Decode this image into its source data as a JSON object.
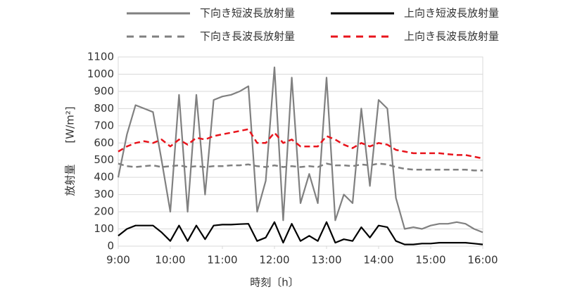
{
  "chart_data": {
    "type": "line",
    "y_label": "放射量　　[W/m²]",
    "x_label": "時刻〔h〕",
    "x": [
      9,
      9.167,
      9.333,
      9.5,
      9.667,
      9.833,
      10,
      10.167,
      10.333,
      10.5,
      10.667,
      10.833,
      11,
      11.167,
      11.333,
      11.5,
      11.667,
      11.833,
      12,
      12.167,
      12.333,
      12.5,
      12.667,
      12.833,
      13,
      13.167,
      13.333,
      13.5,
      13.667,
      13.833,
      14,
      14.167,
      14.333,
      14.5,
      14.667,
      14.833,
      15,
      15.167,
      15.333,
      15.5,
      15.667,
      15.833,
      16
    ],
    "series": [
      {
        "name": "下向き短波長放射量",
        "color": "#808080",
        "linestyle": "solid",
        "values": [
          400,
          650,
          820,
          800,
          780,
          500,
          200,
          880,
          200,
          880,
          300,
          850,
          870,
          880,
          900,
          930,
          200,
          380,
          1040,
          150,
          980,
          250,
          420,
          250,
          980,
          150,
          300,
          250,
          800,
          350,
          850,
          800,
          280,
          100,
          110,
          100,
          120,
          130,
          130,
          140,
          130,
          100,
          80
        ]
      },
      {
        "name": "上向き短波長放射量",
        "color": "#000000",
        "linestyle": "solid",
        "values": [
          60,
          100,
          120,
          120,
          120,
          80,
          30,
          120,
          30,
          120,
          40,
          120,
          125,
          125,
          128,
          130,
          30,
          50,
          140,
          20,
          130,
          30,
          60,
          30,
          140,
          20,
          40,
          30,
          110,
          50,
          120,
          110,
          30,
          10,
          10,
          15,
          15,
          20,
          20,
          20,
          20,
          15,
          10
        ]
      },
      {
        "name": "下向き長波長放射量",
        "color": "#808080",
        "linestyle": "dashed",
        "values": [
          480,
          465,
          460,
          465,
          470,
          460,
          465,
          470,
          460,
          465,
          460,
          465,
          465,
          470,
          470,
          475,
          465,
          460,
          470,
          460,
          465,
          460,
          465,
          460,
          480,
          470,
          470,
          465,
          475,
          470,
          480,
          475,
          460,
          450,
          445,
          445,
          445,
          445,
          445,
          445,
          445,
          440,
          440
        ]
      },
      {
        "name": "上向き長波長放射量",
        "color": "#e8141c",
        "linestyle": "dashed",
        "values": [
          550,
          580,
          600,
          610,
          600,
          620,
          580,
          620,
          590,
          630,
          620,
          640,
          650,
          660,
          670,
          680,
          600,
          600,
          660,
          600,
          620,
          580,
          580,
          580,
          640,
          620,
          590,
          570,
          600,
          580,
          600,
          590,
          560,
          550,
          540,
          540,
          540,
          540,
          535,
          530,
          530,
          520,
          510
        ]
      }
    ],
    "xlim": [
      9,
      16
    ],
    "xticks": [
      {
        "value": 9,
        "label": "9:00"
      },
      {
        "value": 10,
        "label": "10:00"
      },
      {
        "value": 11,
        "label": "11:00"
      },
      {
        "value": 12,
        "label": "12:00"
      },
      {
        "value": 13,
        "label": "13:00"
      },
      {
        "value": 14,
        "label": "14:00"
      },
      {
        "value": 15,
        "label": "15:00"
      },
      {
        "value": 16,
        "label": "16:00"
      }
    ],
    "ylim": [
      0,
      1100
    ],
    "yticks": [
      0,
      100,
      200,
      300,
      400,
      500,
      600,
      700,
      800,
      900,
      1000,
      1100
    ],
    "grid": true
  }
}
